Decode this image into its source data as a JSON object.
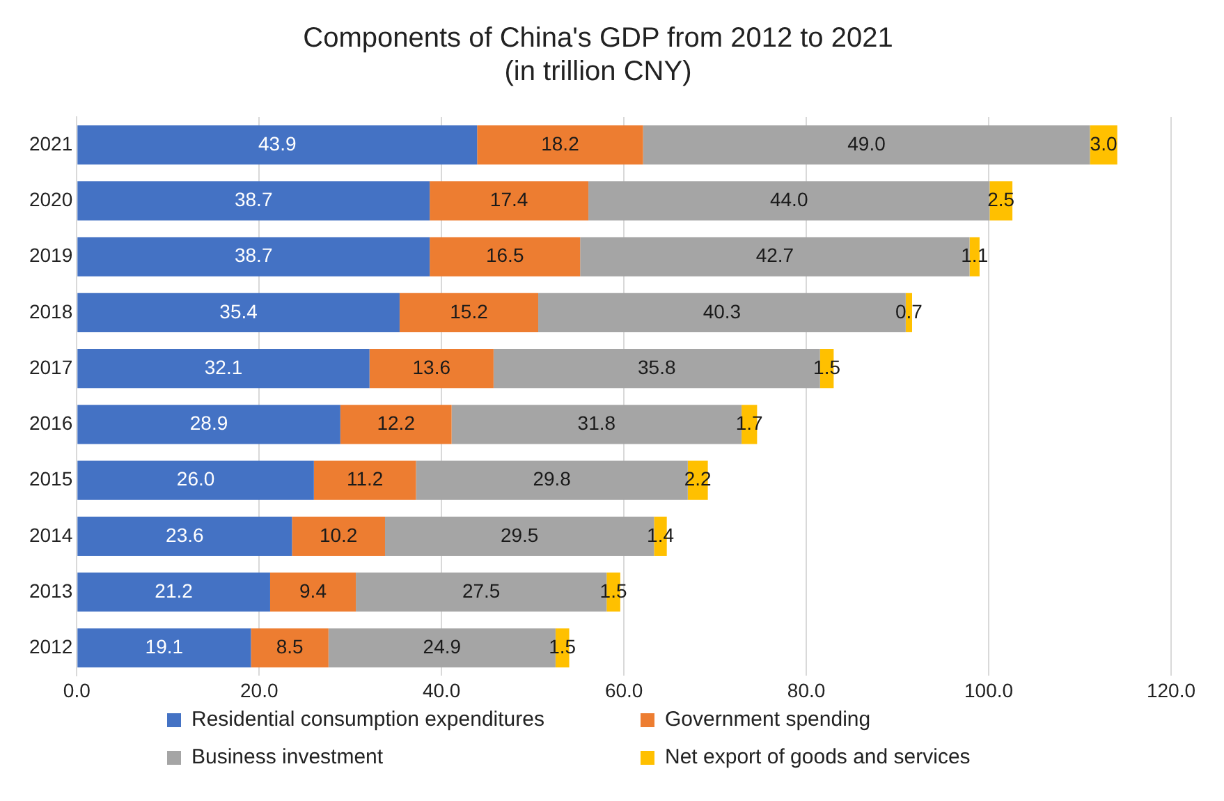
{
  "chart_data": {
    "type": "bar",
    "orientation": "horizontal",
    "stacked": true,
    "title": "Components of China's GDP from 2012 to 2021\n(in trillion CNY)",
    "categories": [
      "2021",
      "2020",
      "2019",
      "2018",
      "2017",
      "2016",
      "2015",
      "2014",
      "2013",
      "2012"
    ],
    "series": [
      {
        "name": "Residential consumption expenditures",
        "color": "#4472c4",
        "values": [
          43.9,
          38.7,
          38.7,
          35.4,
          32.1,
          28.9,
          26.0,
          23.6,
          21.2,
          19.1
        ],
        "value_labels": [
          "43.9",
          "38.7",
          "38.7",
          "35.4",
          "32.1",
          "28.9",
          "26.0",
          "23.6",
          "21.2",
          "19.1"
        ]
      },
      {
        "name": "Government spending",
        "color": "#ed7d31",
        "values": [
          18.2,
          17.4,
          16.5,
          15.2,
          13.6,
          12.2,
          11.2,
          10.2,
          9.4,
          8.5
        ],
        "value_labels": [
          "18.2",
          "17.4",
          "16.5",
          "15.2",
          "13.6",
          "12.2",
          "11.2",
          "10.2",
          "9.4",
          "8.5"
        ]
      },
      {
        "name": "Business investment",
        "color": "#a5a5a5",
        "values": [
          49.0,
          44.0,
          42.7,
          40.3,
          35.8,
          31.8,
          29.8,
          29.5,
          27.5,
          24.9
        ],
        "value_labels": [
          "49.0",
          "44.0",
          "42.7",
          "40.3",
          "35.8",
          "31.8",
          "29.8",
          "29.5",
          "27.5",
          "24.9"
        ]
      },
      {
        "name": "Net export of goods and services",
        "color": "#ffc000",
        "values": [
          3.0,
          2.5,
          1.1,
          0.7,
          1.5,
          1.7,
          2.2,
          1.4,
          1.5,
          1.5
        ],
        "value_labels": [
          "3.0",
          "2.5",
          "1.1",
          "0.7",
          "1.5",
          "1.7",
          "2.2",
          "1.4",
          "1.5",
          "1.5"
        ]
      }
    ],
    "xlim": [
      0,
      120
    ],
    "xticks": [
      {
        "value": 0,
        "label": "0.0"
      },
      {
        "value": 20,
        "label": "20.0"
      },
      {
        "value": 40,
        "label": "40.0"
      },
      {
        "value": 60,
        "label": "60.0"
      },
      {
        "value": 80,
        "label": "80.0"
      },
      {
        "value": 100,
        "label": "100.0"
      },
      {
        "value": 120,
        "label": "120.0"
      }
    ],
    "grid": "x",
    "legend": "bottom"
  }
}
